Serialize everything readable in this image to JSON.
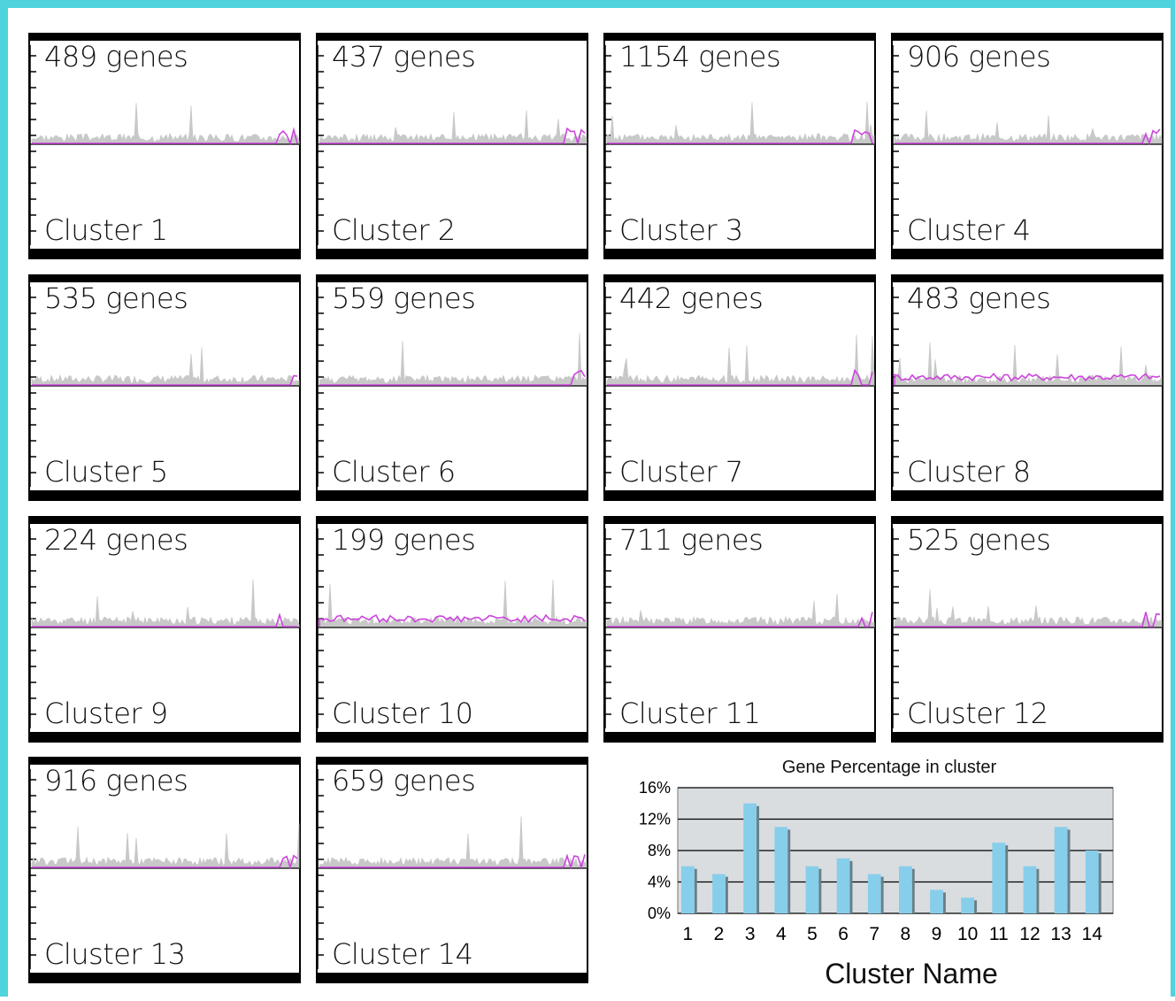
{
  "panels": [
    {
      "genes_label": "489 genes",
      "cluster_label": "Cluster 1",
      "purple_flat": true
    },
    {
      "genes_label": "437 genes",
      "cluster_label": "Cluster 2",
      "purple_flat": true
    },
    {
      "genes_label": "1154 genes",
      "cluster_label": "Cluster 3",
      "purple_flat": true
    },
    {
      "genes_label": "906 genes",
      "cluster_label": "Cluster 4",
      "purple_flat": true
    },
    {
      "genes_label": "535 genes",
      "cluster_label": "Cluster 5",
      "purple_flat": true
    },
    {
      "genes_label": "559 genes",
      "cluster_label": "Cluster 6",
      "purple_flat": true
    },
    {
      "genes_label": "442 genes",
      "cluster_label": "Cluster 7",
      "purple_flat": true
    },
    {
      "genes_label": "483 genes",
      "cluster_label": "Cluster 8",
      "purple_flat": false
    },
    {
      "genes_label": "224 genes",
      "cluster_label": "Cluster 9",
      "purple_flat": true
    },
    {
      "genes_label": "199 genes",
      "cluster_label": "Cluster 10",
      "purple_flat": false
    },
    {
      "genes_label": "711 genes",
      "cluster_label": "Cluster 11",
      "purple_flat": true
    },
    {
      "genes_label": "525 genes",
      "cluster_label": "Cluster 12",
      "purple_flat": true
    },
    {
      "genes_label": "916 genes",
      "cluster_label": "Cluster 13",
      "purple_flat": true
    },
    {
      "genes_label": "659 genes",
      "cluster_label": "Cluster 14",
      "purple_flat": true
    }
  ],
  "colors": {
    "frame": "#4fd3dd",
    "panel_border": "#000000",
    "gray_profile": "#c8c8c8",
    "purple_profile": "#cc44dd",
    "bar_fill": "#87ceeb",
    "bar_shadow": "#6a7f88",
    "plot_bg": "#d9dde0"
  },
  "chart_data": {
    "type": "bar",
    "title": "Gene Percentage in cluster",
    "xlabel": "Cluster Name",
    "ylabel": "",
    "categories": [
      "1",
      "2",
      "3",
      "4",
      "5",
      "6",
      "7",
      "8",
      "9",
      "10",
      "11",
      "12",
      "13",
      "14"
    ],
    "values": [
      6,
      5,
      14,
      11,
      6,
      7,
      5,
      6,
      3,
      2,
      9,
      6,
      11,
      8
    ],
    "value_unit": "%",
    "ylim": [
      0,
      16
    ],
    "yticks": [
      "0%",
      "4%",
      "8%",
      "12%",
      "16%"
    ],
    "grid": true,
    "legend": "none"
  }
}
